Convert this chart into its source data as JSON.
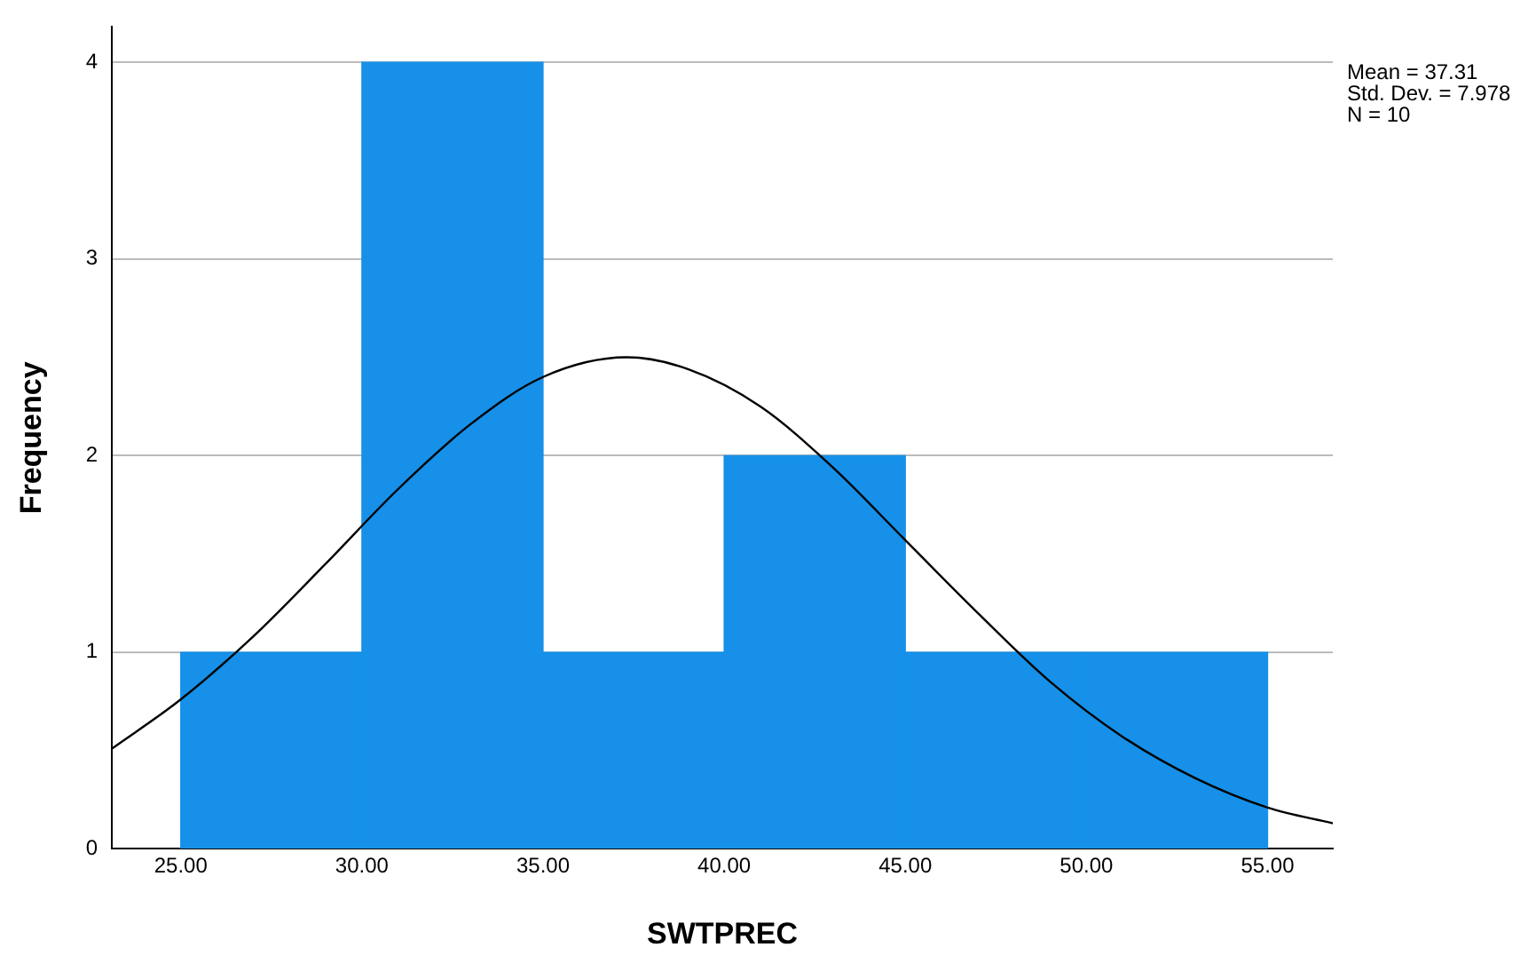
{
  "chart_data": {
    "type": "histogram",
    "xlabel": "SWTPREC",
    "ylabel": "Frequency",
    "bins": [
      25,
      30,
      35,
      40,
      45,
      50,
      55
    ],
    "values": [
      1,
      4,
      1,
      2,
      1,
      1
    ],
    "color": "#1690e8",
    "xlim": [
      23.1,
      56.8
    ],
    "xticks": [
      {
        "value": 25,
        "label": "25.00"
      },
      {
        "value": 30,
        "label": "30.00"
      },
      {
        "value": 35,
        "label": "35.00"
      },
      {
        "value": 40,
        "label": "40.00"
      },
      {
        "value": 45,
        "label": "45.00"
      },
      {
        "value": 50,
        "label": "50.00"
      },
      {
        "value": 55,
        "label": "55.00"
      }
    ],
    "ylim": [
      0,
      4.18
    ],
    "yticks": [
      0,
      1,
      2,
      3,
      4
    ],
    "grid": "y",
    "legend": false,
    "series": [
      {
        "type": "line",
        "color": "#000000",
        "x": [
          23.1,
          25,
          27,
          29,
          31,
          33,
          35,
          37.31,
          39,
          41,
          43,
          45,
          47,
          49,
          51,
          53,
          55,
          56.8
        ],
        "values": [
          0.51,
          0.76,
          1.08,
          1.45,
          1.83,
          2.16,
          2.4,
          2.5,
          2.44,
          2.25,
          1.94,
          1.57,
          1.2,
          0.85,
          0.57,
          0.36,
          0.21,
          0.13
        ]
      }
    ],
    "annotations": [
      "Mean = 37.31",
      "Std. Dev. = 7.978",
      "N = 10"
    ]
  }
}
